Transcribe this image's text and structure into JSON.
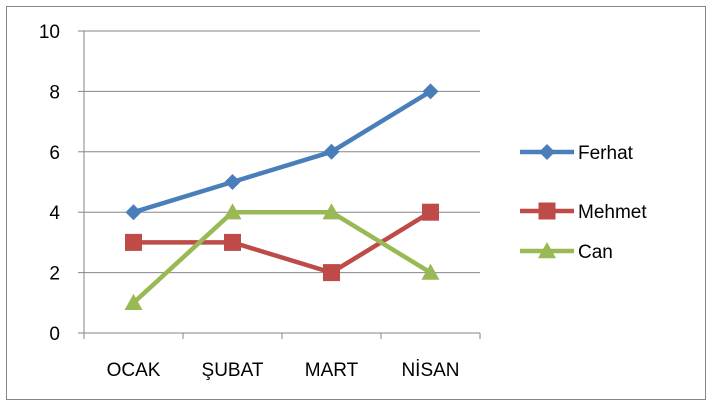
{
  "chart_data": {
    "type": "line",
    "categories": [
      "OCAK",
      "ŞUBAT",
      "MART",
      "NİSAN"
    ],
    "ylim": [
      0,
      10
    ],
    "yticks": [
      0,
      2,
      4,
      6,
      8,
      10
    ],
    "grid": true,
    "legend_position": "right",
    "series": [
      {
        "name": "Ferhat",
        "values": [
          4,
          5,
          6,
          8
        ],
        "color": "#4a7ebb",
        "marker": "diamond"
      },
      {
        "name": "Mehmet",
        "values": [
          3,
          3,
          2,
          4
        ],
        "color": "#be4b48",
        "marker": "square"
      },
      {
        "name": "Can",
        "values": [
          1,
          4,
          4,
          2
        ],
        "color": "#98b954",
        "marker": "triangle"
      }
    ]
  }
}
